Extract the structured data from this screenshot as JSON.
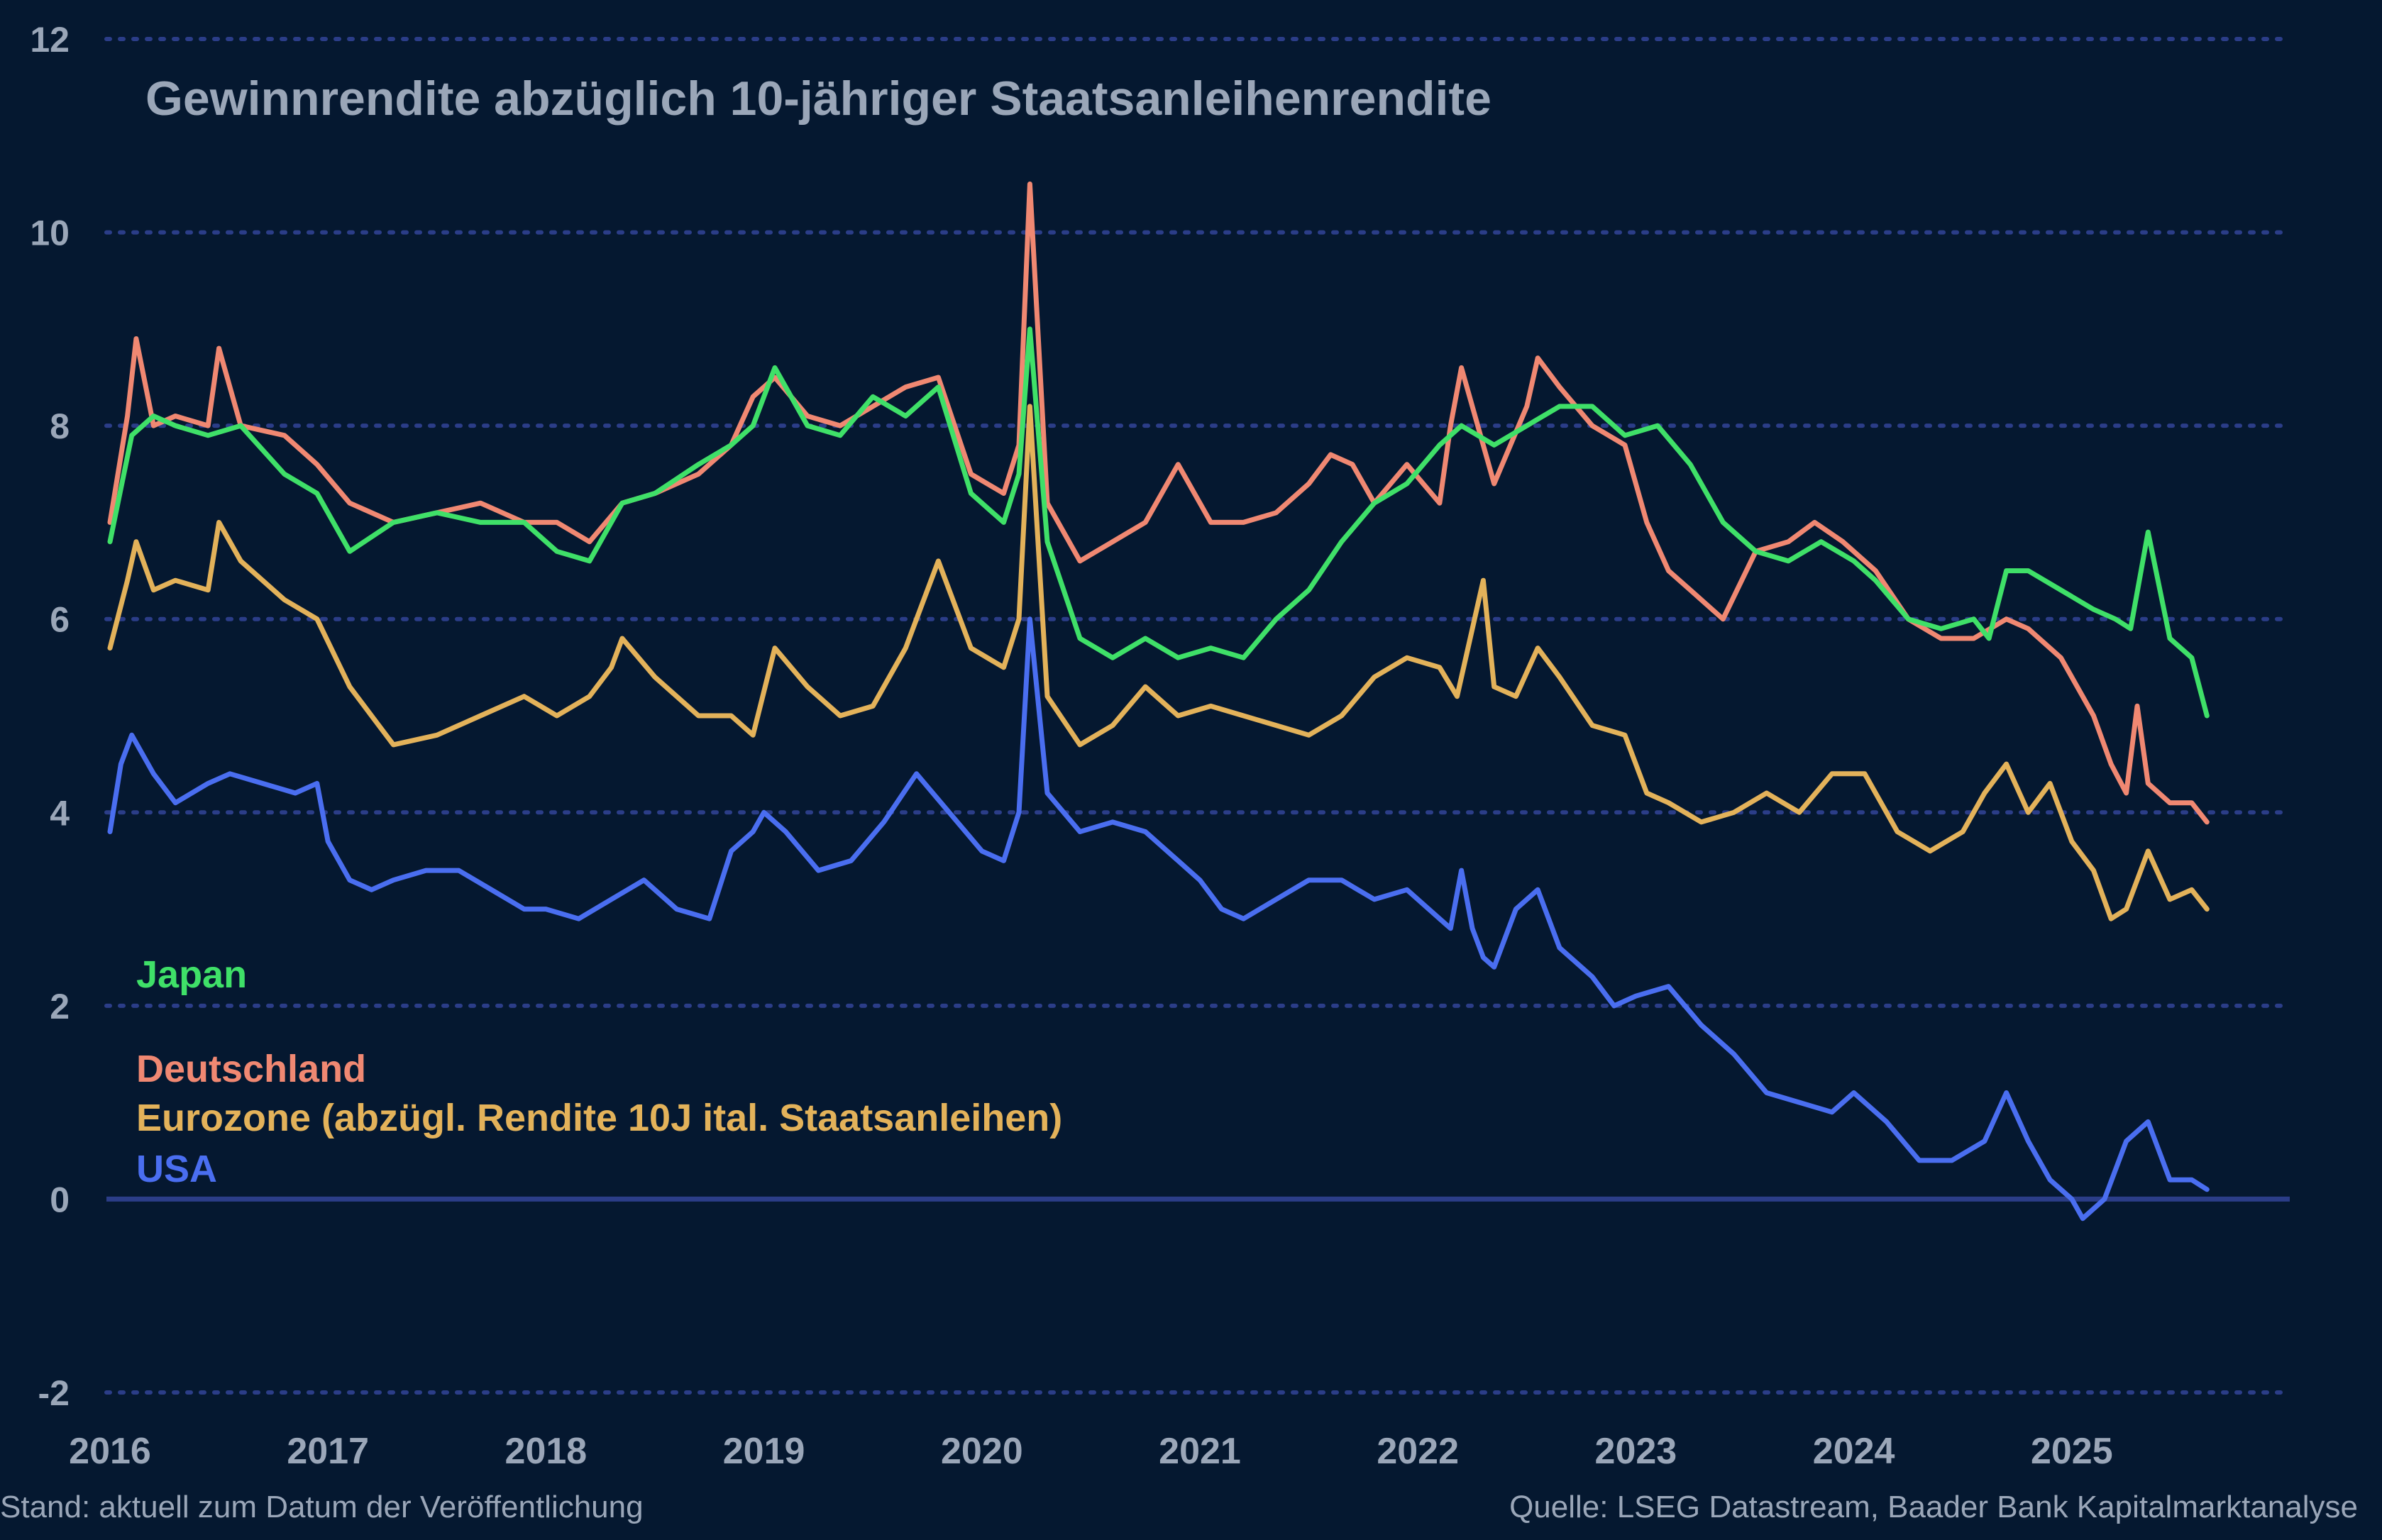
{
  "title": "Gewinnrendite abzüglich 10-jähriger Staatsanleihenrendite",
  "footer": {
    "left": "Stand: aktuell zum Datum der Veröffentlichung",
    "right": "Quelle: LSEG Datastream, Baader Bank Kapitalmarktanalyse"
  },
  "colors": {
    "background": "#051830",
    "grid": "#2b3d88",
    "zero_line": "#2b3d88",
    "tick_text": "#9aa6b8",
    "japan": "#3fe068",
    "deutschland": "#f08872",
    "eurozone": "#e3b25a",
    "usa": "#4a6ef0"
  },
  "chart_data": {
    "type": "line",
    "title": "Gewinnrendite abzüglich 10-jähriger Staatsanleihenrendite",
    "xlabel": "",
    "ylabel": "",
    "xlim": [
      2016.0,
      2026.0
    ],
    "ylim": [
      -2,
      12
    ],
    "x_ticks": [
      2016,
      2017,
      2018,
      2019,
      2020,
      2021,
      2022,
      2023,
      2024,
      2025
    ],
    "x_tick_labels": [
      "2016",
      "2017",
      "2018",
      "2019",
      "2020",
      "2021",
      "2022",
      "2023",
      "2024",
      "2025"
    ],
    "y_ticks": [
      -2,
      0,
      2,
      4,
      6,
      8,
      10,
      12
    ],
    "y_tick_labels": [
      "-2",
      "0",
      "2",
      "4",
      "6",
      "8",
      "10",
      "12"
    ],
    "grid": "horizontal dotted",
    "legend": "left, stacked text labels",
    "series": [
      {
        "name": "Japan",
        "color": "#3fe068",
        "x": [
          2016.0,
          2016.1,
          2016.2,
          2016.3,
          2016.45,
          2016.6,
          2016.8,
          2016.95,
          2017.1,
          2017.3,
          2017.5,
          2017.7,
          2017.9,
          2018.05,
          2018.2,
          2018.35,
          2018.5,
          2018.7,
          2018.85,
          2018.95,
          2019.05,
          2019.2,
          2019.35,
          2019.5,
          2019.65,
          2019.8,
          2019.95,
          2020.1,
          2020.17,
          2020.22,
          2020.3,
          2020.45,
          2020.6,
          2020.75,
          2020.9,
          2021.05,
          2021.2,
          2021.35,
          2021.5,
          2021.65,
          2021.8,
          2021.95,
          2022.1,
          2022.2,
          2022.35,
          2022.5,
          2022.65,
          2022.8,
          2022.95,
          2023.1,
          2023.25,
          2023.4,
          2023.55,
          2023.7,
          2023.85,
          2024.0,
          2024.1,
          2024.25,
          2024.4,
          2024.55,
          2024.62,
          2024.7,
          2024.8,
          2024.95,
          2025.1,
          2025.2,
          2025.27,
          2025.35,
          2025.45,
          2025.55,
          2025.62
        ],
        "values": [
          6.8,
          7.9,
          8.1,
          8.0,
          7.9,
          8.0,
          7.5,
          7.3,
          6.7,
          7.0,
          7.1,
          7.0,
          7.0,
          6.7,
          6.6,
          7.2,
          7.3,
          7.6,
          7.8,
          8.0,
          8.6,
          8.0,
          7.9,
          8.3,
          8.1,
          8.4,
          7.3,
          7.0,
          7.5,
          9.0,
          6.8,
          5.8,
          5.6,
          5.8,
          5.6,
          5.7,
          5.6,
          6.0,
          6.3,
          6.8,
          7.2,
          7.4,
          7.8,
          8.0,
          7.8,
          8.0,
          8.2,
          8.2,
          7.9,
          8.0,
          7.6,
          7.0,
          6.7,
          6.6,
          6.8,
          6.6,
          6.4,
          6.0,
          5.9,
          6.0,
          5.8,
          6.5,
          6.5,
          6.3,
          6.1,
          6.0,
          5.9,
          6.9,
          5.8,
          5.6,
          5.0
        ]
      },
      {
        "name": "Deutschland",
        "color": "#f08872",
        "x": [
          2016.0,
          2016.08,
          2016.12,
          2016.2,
          2016.3,
          2016.45,
          2016.5,
          2016.6,
          2016.8,
          2016.95,
          2017.1,
          2017.3,
          2017.5,
          2017.7,
          2017.9,
          2018.05,
          2018.2,
          2018.35,
          2018.5,
          2018.7,
          2018.85,
          2018.95,
          2019.05,
          2019.2,
          2019.35,
          2019.5,
          2019.65,
          2019.8,
          2019.95,
          2020.1,
          2020.17,
          2020.22,
          2020.3,
          2020.45,
          2020.6,
          2020.75,
          2020.9,
          2021.05,
          2021.2,
          2021.35,
          2021.5,
          2021.6,
          2021.7,
          2021.8,
          2021.95,
          2022.1,
          2022.15,
          2022.2,
          2022.35,
          2022.5,
          2022.55,
          2022.65,
          2022.8,
          2022.95,
          2023.05,
          2023.15,
          2023.25,
          2023.4,
          2023.55,
          2023.7,
          2023.82,
          2023.95,
          2024.1,
          2024.25,
          2024.4,
          2024.55,
          2024.7,
          2024.8,
          2024.95,
          2025.1,
          2025.18,
          2025.25,
          2025.3,
          2025.35,
          2025.45,
          2025.55,
          2025.62
        ],
        "values": [
          7.0,
          8.1,
          8.9,
          8.0,
          8.1,
          8.0,
          8.8,
          8.0,
          7.9,
          7.6,
          7.2,
          7.0,
          7.1,
          7.2,
          7.0,
          7.0,
          6.8,
          7.2,
          7.3,
          7.5,
          7.8,
          8.3,
          8.5,
          8.1,
          8.0,
          8.2,
          8.4,
          8.5,
          7.5,
          7.3,
          7.8,
          10.5,
          7.2,
          6.6,
          6.8,
          7.0,
          7.6,
          7.0,
          7.0,
          7.1,
          7.4,
          7.7,
          7.6,
          7.2,
          7.6,
          7.2,
          8.0,
          8.6,
          7.4,
          8.2,
          8.7,
          8.4,
          8.0,
          7.8,
          7.0,
          6.5,
          6.3,
          6.0,
          6.7,
          6.8,
          7.0,
          6.8,
          6.5,
          6.0,
          5.8,
          5.8,
          6.0,
          5.9,
          5.6,
          5.0,
          4.5,
          4.2,
          5.1,
          4.3,
          4.1,
          4.1,
          3.9
        ]
      },
      {
        "name": "Eurozone (abzügl. Rendite 10J ital. Staatsanleihen)",
        "color": "#e3b25a",
        "x": [
          2016.0,
          2016.08,
          2016.12,
          2016.2,
          2016.3,
          2016.45,
          2016.5,
          2016.6,
          2016.8,
          2016.95,
          2017.1,
          2017.2,
          2017.3,
          2017.5,
          2017.7,
          2017.9,
          2018.05,
          2018.2,
          2018.3,
          2018.35,
          2018.5,
          2018.7,
          2018.85,
          2018.95,
          2019.05,
          2019.2,
          2019.35,
          2019.5,
          2019.65,
          2019.8,
          2019.95,
          2020.1,
          2020.17,
          2020.22,
          2020.3,
          2020.45,
          2020.6,
          2020.75,
          2020.9,
          2021.05,
          2021.2,
          2021.35,
          2021.5,
          2021.65,
          2021.8,
          2021.95,
          2022.1,
          2022.18,
          2022.3,
          2022.35,
          2022.45,
          2022.55,
          2022.65,
          2022.8,
          2022.95,
          2023.05,
          2023.15,
          2023.3,
          2023.45,
          2023.6,
          2023.75,
          2023.9,
          2024.05,
          2024.2,
          2024.35,
          2024.5,
          2024.6,
          2024.7,
          2024.8,
          2024.9,
          2025.0,
          2025.1,
          2025.18,
          2025.25,
          2025.35,
          2025.45,
          2025.55,
          2025.62
        ],
        "values": [
          5.7,
          6.4,
          6.8,
          6.3,
          6.4,
          6.3,
          7.0,
          6.6,
          6.2,
          6.0,
          5.3,
          5.0,
          4.7,
          4.8,
          5.0,
          5.2,
          5.0,
          5.2,
          5.5,
          5.8,
          5.4,
          5.0,
          5.0,
          4.8,
          5.7,
          5.3,
          5.0,
          5.1,
          5.7,
          6.6,
          5.7,
          5.5,
          6.0,
          8.2,
          5.2,
          4.7,
          4.9,
          5.3,
          5.0,
          5.1,
          5.0,
          4.9,
          4.8,
          5.0,
          5.4,
          5.6,
          5.5,
          5.2,
          6.4,
          5.3,
          5.2,
          5.7,
          5.4,
          4.9,
          4.8,
          4.2,
          4.1,
          3.9,
          4.0,
          4.2,
          4.0,
          4.4,
          4.4,
          3.8,
          3.6,
          3.8,
          4.2,
          4.5,
          4.0,
          4.3,
          3.7,
          3.4,
          2.9,
          3.0,
          3.6,
          3.1,
          3.2,
          3.0
        ]
      },
      {
        "name": "USA",
        "color": "#4a6ef0",
        "x": [
          2016.0,
          2016.05,
          2016.1,
          2016.2,
          2016.3,
          2016.45,
          2016.55,
          2016.7,
          2016.85,
          2016.95,
          2017.0,
          2017.1,
          2017.2,
          2017.3,
          2017.45,
          2017.6,
          2017.75,
          2017.9,
          2018.0,
          2018.15,
          2018.3,
          2018.45,
          2018.6,
          2018.75,
          2018.85,
          2018.95,
          2019.0,
          2019.1,
          2019.25,
          2019.4,
          2019.55,
          2019.7,
          2019.85,
          2020.0,
          2020.1,
          2020.17,
          2020.22,
          2020.3,
          2020.45,
          2020.6,
          2020.75,
          2020.9,
          2021.0,
          2021.1,
          2021.2,
          2021.35,
          2021.5,
          2021.65,
          2021.8,
          2021.95,
          2022.05,
          2022.15,
          2022.2,
          2022.25,
          2022.3,
          2022.35,
          2022.45,
          2022.55,
          2022.65,
          2022.8,
          2022.9,
          2023.0,
          2023.15,
          2023.3,
          2023.45,
          2023.6,
          2023.75,
          2023.9,
          2024.0,
          2024.15,
          2024.3,
          2024.45,
          2024.6,
          2024.7,
          2024.8,
          2024.9,
          2025.0,
          2025.05,
          2025.15,
          2025.25,
          2025.35,
          2025.45,
          2025.55,
          2025.62
        ],
        "values": [
          3.8,
          4.5,
          4.8,
          4.4,
          4.1,
          4.3,
          4.4,
          4.3,
          4.2,
          4.3,
          3.7,
          3.3,
          3.2,
          3.3,
          3.4,
          3.4,
          3.2,
          3.0,
          3.0,
          2.9,
          3.1,
          3.3,
          3.0,
          2.9,
          3.6,
          3.8,
          4.0,
          3.8,
          3.4,
          3.5,
          3.9,
          4.4,
          4.0,
          3.6,
          3.5,
          4.0,
          6.0,
          4.2,
          3.8,
          3.9,
          3.8,
          3.5,
          3.3,
          3.0,
          2.9,
          3.1,
          3.3,
          3.3,
          3.1,
          3.2,
          3.0,
          2.8,
          3.4,
          2.8,
          2.5,
          2.4,
          3.0,
          3.2,
          2.6,
          2.3,
          2.0,
          2.1,
          2.2,
          1.8,
          1.5,
          1.1,
          1.0,
          0.9,
          1.1,
          0.8,
          0.4,
          0.4,
          0.6,
          1.1,
          0.6,
          0.2,
          0.0,
          -0.2,
          0.0,
          0.6,
          0.8,
          0.2,
          0.2,
          0.1
        ]
      }
    ]
  }
}
